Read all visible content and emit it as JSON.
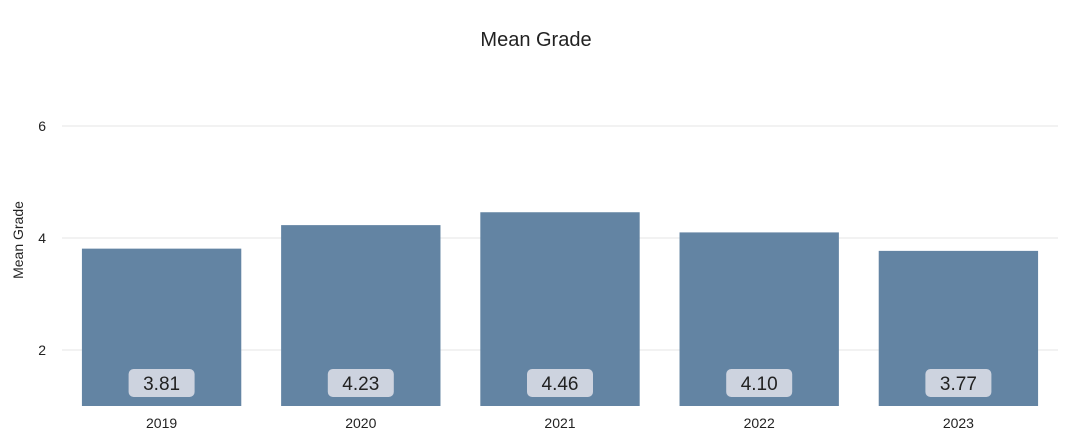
{
  "chart_data": {
    "type": "bar",
    "title": "Mean Grade",
    "xlabel": "",
    "ylabel": "Mean Grade",
    "categories": [
      "2019",
      "2020",
      "2021",
      "2022",
      "2023"
    ],
    "values": [
      3.81,
      4.23,
      4.46,
      4.1,
      3.77
    ],
    "value_labels": [
      "3.81",
      "4.23",
      "4.46",
      "4.10",
      "3.77"
    ],
    "ylim": [
      1,
      7
    ],
    "yticks": [
      2,
      4,
      6
    ],
    "grid": true,
    "bar_color": "#6384a3",
    "label_box_color": "#cdd3df"
  }
}
